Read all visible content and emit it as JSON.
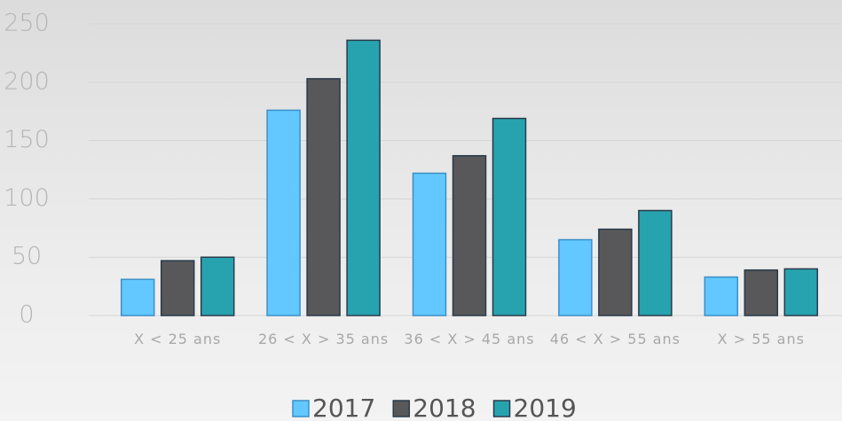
{
  "chart_data": {
    "type": "bar",
    "categories": [
      "X < 25 ans",
      "26 < X > 35 ans",
      "36 < X > 45 ans",
      "46 < X > 55 ans",
      "X > 55 ans"
    ],
    "series": [
      {
        "name": "2017",
        "color": "#62c8ff",
        "values": [
          31,
          176,
          122,
          65,
          33
        ]
      },
      {
        "name": "2018",
        "color": "#58585a",
        "values": [
          47,
          203,
          137,
          74,
          39
        ]
      },
      {
        "name": "2019",
        "color": "#27a3b0",
        "values": [
          50,
          236,
          169,
          90,
          40
        ]
      }
    ],
    "ylim": [
      0,
      250
    ],
    "yticks": [
      0,
      50,
      100,
      150,
      200,
      250
    ],
    "grid": true,
    "legend": "bottom"
  }
}
